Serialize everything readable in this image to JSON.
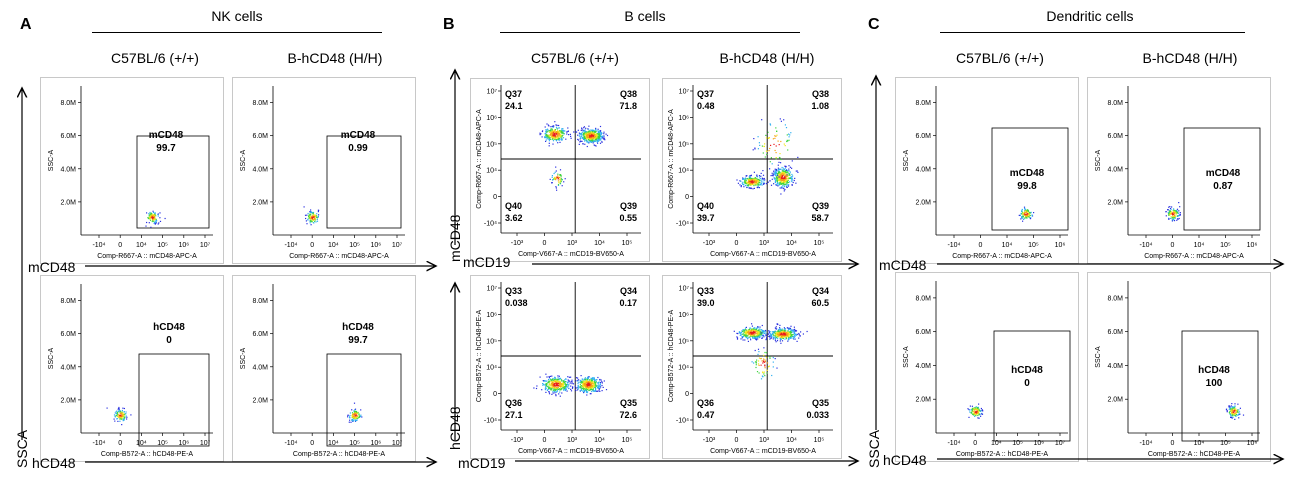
{
  "panels": [
    {
      "letter": "A",
      "title": "NK cells"
    },
    {
      "letter": "B",
      "title": "B cells"
    },
    {
      "letter": "C",
      "title": "Dendritic cells"
    }
  ],
  "genotypes": {
    "wt": "C57BL/6 (+/+)",
    "hu": "B-hCD48 (H/H)"
  },
  "axis_labels": {
    "ssca": "SSCA",
    "mcd48": "mCD48",
    "hcd48": "hCD48",
    "mcd19": "mCD19"
  },
  "chart_data": [
    {
      "type": "scatter",
      "panel": "A",
      "row": "mCD48",
      "genotype": "C57BL/6 (+/+)",
      "gate_label": "mCD48",
      "gate_value": "99.7",
      "x_axis": "Comp-R667-A :: mCD48-APC-A",
      "y_axis": "SSC-A",
      "x_ticks": [
        "-10⁴",
        "0",
        "10⁴",
        "10⁵",
        "10⁶",
        "10⁷"
      ],
      "y_ticks": [
        "2.0M",
        "4.0M",
        "6.0M",
        "8.0M"
      ],
      "population": {
        "x": 4.5,
        "y": 1.1
      }
    },
    {
      "type": "scatter",
      "panel": "A",
      "row": "mCD48",
      "genotype": "B-hCD48 (H/H)",
      "gate_label": "mCD48",
      "gate_value": "0.99",
      "x_axis": "Comp-R667-A :: mCD48-APC-A",
      "y_axis": "SSC-A",
      "x_ticks": [
        "-10⁴",
        "0",
        "10⁴",
        "10⁵",
        "10⁶",
        "10⁷"
      ],
      "y_ticks": [
        "2.0M",
        "4.0M",
        "6.0M",
        "8.0M"
      ],
      "population": {
        "x": 0,
        "y": 1.1
      }
    },
    {
      "type": "scatter",
      "panel": "A",
      "row": "hCD48",
      "genotype": "C57BL/6 (+/+)",
      "gate_label": "hCD48",
      "gate_value": "0",
      "x_axis": "Comp-B572-A :: hCD48-PE-A",
      "y_axis": "SSC-A",
      "x_ticks": [
        "-10⁴",
        "0",
        "10⁴",
        "10⁵",
        "10⁶",
        "10⁷"
      ],
      "y_ticks": [
        "2.0M",
        "4.0M",
        "6.0M",
        "8.0M"
      ],
      "population": {
        "x": 0,
        "y": 1.1
      }
    },
    {
      "type": "scatter",
      "panel": "A",
      "row": "hCD48",
      "genotype": "B-hCD48 (H/H)",
      "gate_label": "hCD48",
      "gate_value": "99.7",
      "x_axis": "Comp-B572-A :: hCD48-PE-A",
      "y_axis": "SSC-A",
      "x_ticks": [
        "-10⁴",
        "0",
        "10⁴",
        "10⁵",
        "10⁶",
        "10⁷"
      ],
      "y_ticks": [
        "2.0M",
        "4.0M",
        "6.0M",
        "8.0M"
      ],
      "population": {
        "x": 5,
        "y": 1.1
      }
    },
    {
      "type": "scatter",
      "panel": "B",
      "row": "mCD48",
      "genotype": "C57BL/6 (+/+)",
      "x_axis": "Comp-V667-A :: mCD19-BV650-A",
      "y_axis": "Comp-R667-A :: mCD48-APC-A",
      "quadrants": [
        {
          "name": "Q37",
          "value": "24.1"
        },
        {
          "name": "Q38",
          "value": "71.8"
        },
        {
          "name": "Q40",
          "value": "3.62"
        },
        {
          "name": "Q39",
          "value": "0.55"
        }
      ]
    },
    {
      "type": "scatter",
      "panel": "B",
      "row": "mCD48",
      "genotype": "B-hCD48 (H/H)",
      "x_axis": "Comp-V667-A :: mCD19-BV650-A",
      "y_axis": "Comp-R667-A :: mCD48-APC-A",
      "quadrants": [
        {
          "name": "Q37",
          "value": "0.48"
        },
        {
          "name": "Q38",
          "value": "1.08"
        },
        {
          "name": "Q40",
          "value": "39.7"
        },
        {
          "name": "Q39",
          "value": "58.7"
        }
      ]
    },
    {
      "type": "scatter",
      "panel": "B",
      "row": "hCD48",
      "genotype": "C57BL/6 (+/+)",
      "x_axis": "Comp-V667-A :: mCD19-BV650-A",
      "y_axis": "Comp-B572-A :: hCD48-PE-A",
      "quadrants": [
        {
          "name": "Q33",
          "value": "0.038"
        },
        {
          "name": "Q34",
          "value": "0.17"
        },
        {
          "name": "Q36",
          "value": "27.1"
        },
        {
          "name": "Q35",
          "value": "72.6"
        }
      ]
    },
    {
      "type": "scatter",
      "panel": "B",
      "row": "hCD48",
      "genotype": "B-hCD48 (H/H)",
      "x_axis": "Comp-V667-A :: mCD19-BV650-A",
      "y_axis": "Comp-B572-A :: hCD48-PE-A",
      "quadrants": [
        {
          "name": "Q33",
          "value": "39.0"
        },
        {
          "name": "Q34",
          "value": "60.5"
        },
        {
          "name": "Q36",
          "value": "0.47"
        },
        {
          "name": "Q35",
          "value": "0.033"
        }
      ]
    },
    {
      "type": "scatter",
      "panel": "C",
      "row": "mCD48",
      "genotype": "C57BL/6 (+/+)",
      "gate_label": "mCD48",
      "gate_value": "99.8",
      "x_axis": "Comp-R667-A :: mCD48-APC-A",
      "y_axis": "SSC-A",
      "x_ticks": [
        "-10⁴",
        "0",
        "10⁴",
        "10⁵",
        "10⁶"
      ],
      "y_ticks": [
        "2.0M",
        "4.0M",
        "6.0M",
        "8.0M"
      ],
      "population": {
        "x": 4.7,
        "y": 1.3
      }
    },
    {
      "type": "scatter",
      "panel": "C",
      "row": "mCD48",
      "genotype": "B-hCD48 (H/H)",
      "gate_label": "mCD48",
      "gate_value": "0.87",
      "x_axis": "Comp-R667-A :: mCD48-APC-A",
      "y_axis": "SSC-A",
      "x_ticks": [
        "-10⁴",
        "0",
        "10⁴",
        "10⁵",
        "10⁶"
      ],
      "y_ticks": [
        "2.0M",
        "4.0M",
        "6.0M",
        "8.0M"
      ],
      "population": {
        "x": 0,
        "y": 1.3
      }
    },
    {
      "type": "scatter",
      "panel": "C",
      "row": "hCD48",
      "genotype": "C57BL/6 (+/+)",
      "gate_label": "hCD48",
      "gate_value": "0",
      "x_axis": "Comp-B572-A :: hCD48-PE-A",
      "y_axis": "SSC-A",
      "x_ticks": [
        "-10⁴",
        "0",
        "10⁴",
        "10⁵",
        "10⁶",
        "10⁷"
      ],
      "y_ticks": [
        "2.0M",
        "4.0M",
        "6.0M",
        "8.0M"
      ],
      "population": {
        "x": 0,
        "y": 1.3
      }
    },
    {
      "type": "scatter",
      "panel": "C",
      "row": "hCD48",
      "genotype": "B-hCD48 (H/H)",
      "gate_label": "hCD48",
      "gate_value": "100",
      "x_axis": "Comp-B572-A :: hCD48-PE-A",
      "y_axis": "SSC-A",
      "x_ticks": [
        "-10⁴",
        "0",
        "10⁴",
        "10⁵",
        "10⁶"
      ],
      "y_ticks": [
        "2.0M",
        "4.0M",
        "6.0M",
        "8.0M"
      ],
      "population": {
        "x": 5.3,
        "y": 1.3
      }
    }
  ],
  "b_ticks": {
    "x": [
      "-10³",
      "0",
      "10³",
      "10⁴",
      "10⁵"
    ],
    "y": [
      "10⁷",
      "10⁶",
      "10⁵",
      "10⁴",
      "0",
      "-10⁴"
    ]
  }
}
